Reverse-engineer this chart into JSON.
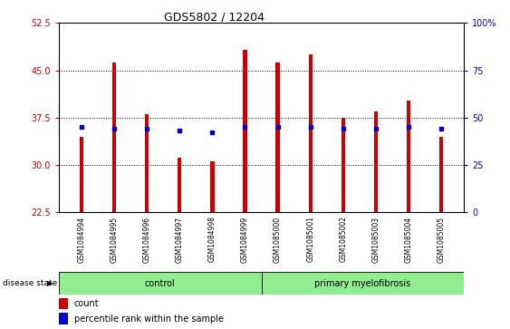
{
  "title": "GDS5802 / 12204",
  "samples": [
    "GSM1084994",
    "GSM1084995",
    "GSM1084996",
    "GSM1084997",
    "GSM1084998",
    "GSM1084999",
    "GSM1085000",
    "GSM1085001",
    "GSM1085002",
    "GSM1085003",
    "GSM1085004",
    "GSM1085005"
  ],
  "counts": [
    34.5,
    46.2,
    38.0,
    31.2,
    30.5,
    48.2,
    46.2,
    47.5,
    37.5,
    38.5,
    40.2,
    34.5
  ],
  "pct_rank": [
    45,
    44,
    44,
    43,
    42,
    45,
    45,
    45,
    44,
    44,
    45,
    44
  ],
  "ylim_left": [
    22.5,
    52.5
  ],
  "yticks_left": [
    22.5,
    30.0,
    37.5,
    45.0,
    52.5
  ],
  "yticks_right": [
    0,
    25,
    50,
    75,
    100
  ],
  "bar_color": "#cc0000",
  "blue_color": "#0000cc",
  "control_count": 6,
  "disease_count": 6,
  "control_label": "control",
  "disease_label": "primary myelofibrosis",
  "disease_state_label": "disease state",
  "legend_count": "count",
  "legend_percentile": "percentile rank within the sample",
  "bar_width": 0.12,
  "gray_bg": "#c8c8c8",
  "green_bg": "#90ee90"
}
